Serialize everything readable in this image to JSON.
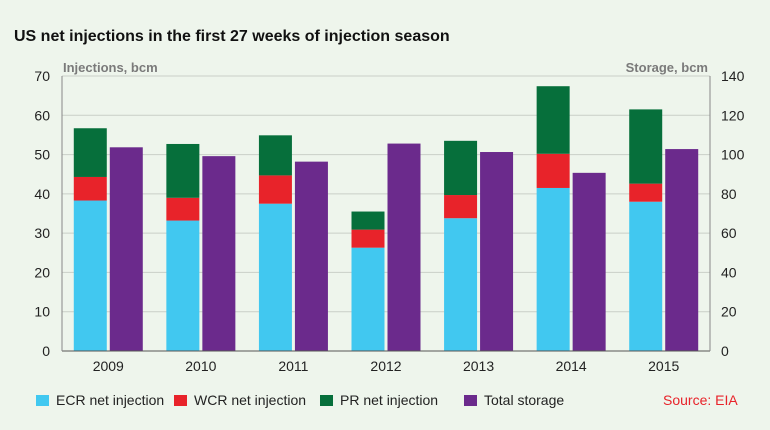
{
  "title": "US net injections in the first 27 weeks of injection season",
  "source": "Source: EIA",
  "colors": {
    "ecr": "#41c8f0",
    "wcr": "#e8232a",
    "pr": "#066f3b",
    "total": "#6b2a8c",
    "grid": "#c9cfc7",
    "background": "#eef5ec"
  },
  "chart_data": {
    "type": "bar",
    "categories": [
      "2009",
      "2010",
      "2011",
      "2012",
      "2013",
      "2014",
      "2015"
    ],
    "series": [
      {
        "name": "ECR net injection",
        "axis": "left",
        "stack": "injections",
        "values": [
          38.3,
          33.2,
          37.5,
          26.3,
          33.8,
          41.5,
          38.0
        ]
      },
      {
        "name": "WCR net injection",
        "axis": "left",
        "stack": "injections",
        "values": [
          6.0,
          5.8,
          7.2,
          4.6,
          5.9,
          8.7,
          4.6
        ]
      },
      {
        "name": "PR net injection",
        "axis": "left",
        "stack": "injections",
        "values": [
          12.4,
          13.7,
          10.2,
          4.6,
          13.8,
          17.2,
          18.9
        ]
      },
      {
        "name": "Total storage",
        "axis": "right",
        "values": [
          103.7,
          99.2,
          96.4,
          105.6,
          101.3,
          90.7,
          102.8
        ]
      }
    ],
    "ylabel": "Injections, bcm",
    "y2label": "Storage, bcm",
    "ylim": [
      0,
      70
    ],
    "y2lim": [
      0,
      140
    ],
    "yticks": [
      "0",
      "10",
      "20",
      "30",
      "40",
      "50",
      "60",
      "70"
    ],
    "y2ticks": [
      "0",
      "20",
      "40",
      "60",
      "80",
      "100",
      "120",
      "140"
    ],
    "grid": true,
    "legend_position": "bottom"
  }
}
